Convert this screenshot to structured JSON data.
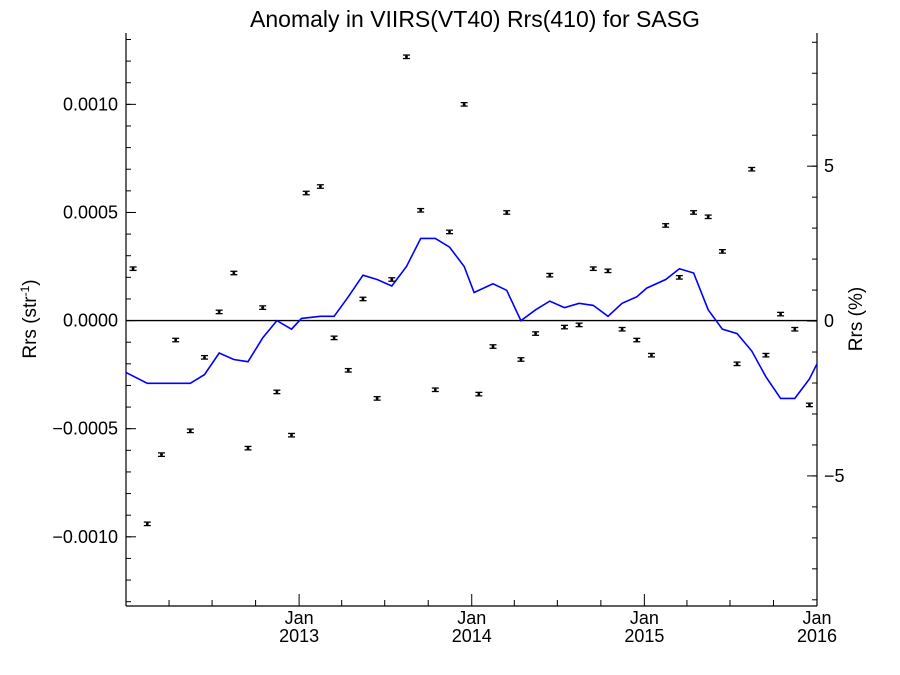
{
  "chart_data": {
    "type": "scatter",
    "title": "Anomaly in VIIRS(VT40) Rrs(410) for SASG",
    "ylabel_left": "Rrs (str",
    "ylabel_left_superscript": "-1",
    "ylabel_left_close": ")",
    "ylabel_right": "Rrs (%)",
    "xlim": [
      "2012-01-01",
      "2016-01-01"
    ],
    "ylim": [
      -0.00132,
      0.00133
    ],
    "ylim_right": [
      -9.2,
      9.3
    ],
    "grid": false,
    "y_ticks": [
      {
        "value": 0.001,
        "label": "0.0010"
      },
      {
        "value": 0.0005,
        "label": "0.0005"
      },
      {
        "value": 0.0,
        "label": "0.0000"
      },
      {
        "value": -0.0005,
        "label": "−0.0005"
      },
      {
        "value": -0.001,
        "label": "−0.0010"
      }
    ],
    "y_right_ticks": [
      {
        "value": 5,
        "label": "5"
      },
      {
        "value": 0,
        "label": "0"
      },
      {
        "value": -5,
        "label": "−5"
      }
    ],
    "x_ticks": [
      {
        "date": "2013-01-01",
        "label": "Jan",
        "year": "2013"
      },
      {
        "date": "2014-01-01",
        "label": "Jan",
        "year": "2014"
      },
      {
        "date": "2015-01-01",
        "label": "Jan",
        "year": "2015"
      },
      {
        "date": "2016-01-01",
        "label": "Jan",
        "year": "2016"
      }
    ],
    "reference_line": 0,
    "series": [
      {
        "kind": "points_with_errorbars",
        "color": "#000000",
        "error": 8e-06,
        "points": [
          {
            "x": "2012-01-16",
            "y": 0.00024
          },
          {
            "x": "2012-02-15",
            "y": -0.00094
          },
          {
            "x": "2012-03-16",
            "y": -0.00062
          },
          {
            "x": "2012-04-15",
            "y": -9e-05
          },
          {
            "x": "2012-05-16",
            "y": -0.00051
          },
          {
            "x": "2012-06-15",
            "y": -0.00017
          },
          {
            "x": "2012-07-16",
            "y": 4e-05
          },
          {
            "x": "2012-08-16",
            "y": 0.00022
          },
          {
            "x": "2012-09-15",
            "y": -0.00059
          },
          {
            "x": "2012-10-16",
            "y": 6e-05
          },
          {
            "x": "2012-11-15",
            "y": -0.00033
          },
          {
            "x": "2012-12-16",
            "y": -0.00053
          },
          {
            "x": "2013-01-16",
            "y": 0.00059
          },
          {
            "x": "2013-02-15",
            "y": 0.00062
          },
          {
            "x": "2013-03-16",
            "y": -8e-05
          },
          {
            "x": "2013-04-15",
            "y": -0.00023
          },
          {
            "x": "2013-05-16",
            "y": 0.0001
          },
          {
            "x": "2013-06-15",
            "y": -0.00036
          },
          {
            "x": "2013-07-16",
            "y": 0.00019
          },
          {
            "x": "2013-08-16",
            "y": 0.00122
          },
          {
            "x": "2013-09-15",
            "y": 0.00051
          },
          {
            "x": "2013-10-16",
            "y": -0.00032
          },
          {
            "x": "2013-11-15",
            "y": 0.00041
          },
          {
            "x": "2013-12-16",
            "y": 0.001
          },
          {
            "x": "2014-01-16",
            "y": -0.00034
          },
          {
            "x": "2014-02-15",
            "y": -0.00012
          },
          {
            "x": "2014-03-16",
            "y": 0.0005
          },
          {
            "x": "2014-04-15",
            "y": -0.00018
          },
          {
            "x": "2014-05-16",
            "y": -6e-05
          },
          {
            "x": "2014-06-15",
            "y": 0.00021
          },
          {
            "x": "2014-07-16",
            "y": -3e-05
          },
          {
            "x": "2014-08-16",
            "y": -2e-05
          },
          {
            "x": "2014-09-15",
            "y": 0.00024
          },
          {
            "x": "2014-10-16",
            "y": 0.00023
          },
          {
            "x": "2014-11-15",
            "y": -4e-05
          },
          {
            "x": "2014-12-16",
            "y": -9e-05
          },
          {
            "x": "2015-01-16",
            "y": -0.00016
          },
          {
            "x": "2015-02-15",
            "y": 0.00044
          },
          {
            "x": "2015-03-16",
            "y": 0.0002
          },
          {
            "x": "2015-04-15",
            "y": 0.0005
          },
          {
            "x": "2015-05-16",
            "y": 0.00048
          },
          {
            "x": "2015-06-15",
            "y": 0.00032
          },
          {
            "x": "2015-07-16",
            "y": -0.0002
          },
          {
            "x": "2015-08-16",
            "y": 0.0007
          },
          {
            "x": "2015-09-15",
            "y": -0.00016
          },
          {
            "x": "2015-10-16",
            "y": 3e-05
          },
          {
            "x": "2015-11-15",
            "y": -4e-05
          },
          {
            "x": "2015-12-16",
            "y": -0.00039
          }
        ]
      },
      {
        "kind": "line",
        "color": "#0000ff",
        "points": [
          {
            "x": "2012-01-01",
            "y": -0.00024
          },
          {
            "x": "2012-02-15",
            "y": -0.00029
          },
          {
            "x": "2012-03-16",
            "y": -0.00029
          },
          {
            "x": "2012-04-15",
            "y": -0.00029
          },
          {
            "x": "2012-05-16",
            "y": -0.00029
          },
          {
            "x": "2012-06-15",
            "y": -0.00025
          },
          {
            "x": "2012-07-16",
            "y": -0.00015
          },
          {
            "x": "2012-08-16",
            "y": -0.00018
          },
          {
            "x": "2012-09-15",
            "y": -0.00019
          },
          {
            "x": "2012-10-16",
            "y": -8e-05
          },
          {
            "x": "2012-11-15",
            "y": 0.0
          },
          {
            "x": "2012-12-16",
            "y": -4e-05
          },
          {
            "x": "2013-01-06",
            "y": 1e-05
          },
          {
            "x": "2013-02-15",
            "y": 2e-05
          },
          {
            "x": "2013-03-16",
            "y": 2e-05
          },
          {
            "x": "2013-04-15",
            "y": 0.00011
          },
          {
            "x": "2013-05-16",
            "y": 0.00021
          },
          {
            "x": "2013-06-15",
            "y": 0.00019
          },
          {
            "x": "2013-07-16",
            "y": 0.00016
          },
          {
            "x": "2013-08-16",
            "y": 0.00025
          },
          {
            "x": "2013-09-15",
            "y": 0.00038
          },
          {
            "x": "2013-10-16",
            "y": 0.00038
          },
          {
            "x": "2013-11-15",
            "y": 0.00034
          },
          {
            "x": "2013-12-16",
            "y": 0.00025
          },
          {
            "x": "2014-01-06",
            "y": 0.00013
          },
          {
            "x": "2014-02-15",
            "y": 0.00017
          },
          {
            "x": "2014-03-16",
            "y": 0.00014
          },
          {
            "x": "2014-04-15",
            "y": 0.0
          },
          {
            "x": "2014-05-16",
            "y": 5e-05
          },
          {
            "x": "2014-06-15",
            "y": 9e-05
          },
          {
            "x": "2014-07-16",
            "y": 6e-05
          },
          {
            "x": "2014-08-16",
            "y": 8e-05
          },
          {
            "x": "2014-09-15",
            "y": 7e-05
          },
          {
            "x": "2014-10-16",
            "y": 2e-05
          },
          {
            "x": "2014-11-15",
            "y": 8e-05
          },
          {
            "x": "2014-12-16",
            "y": 0.00011
          },
          {
            "x": "2015-01-06",
            "y": 0.00015
          },
          {
            "x": "2015-02-15",
            "y": 0.00019
          },
          {
            "x": "2015-03-16",
            "y": 0.00024
          },
          {
            "x": "2015-04-15",
            "y": 0.00022
          },
          {
            "x": "2015-05-16",
            "y": 5e-05
          },
          {
            "x": "2015-06-15",
            "y": -4e-05
          },
          {
            "x": "2015-07-16",
            "y": -6e-05
          },
          {
            "x": "2015-08-16",
            "y": -0.00014
          },
          {
            "x": "2015-09-15",
            "y": -0.00026
          },
          {
            "x": "2015-10-16",
            "y": -0.00036
          },
          {
            "x": "2015-11-15",
            "y": -0.00036
          },
          {
            "x": "2015-12-16",
            "y": -0.00027
          },
          {
            "x": "2016-01-01",
            "y": -0.0002
          }
        ]
      }
    ]
  }
}
